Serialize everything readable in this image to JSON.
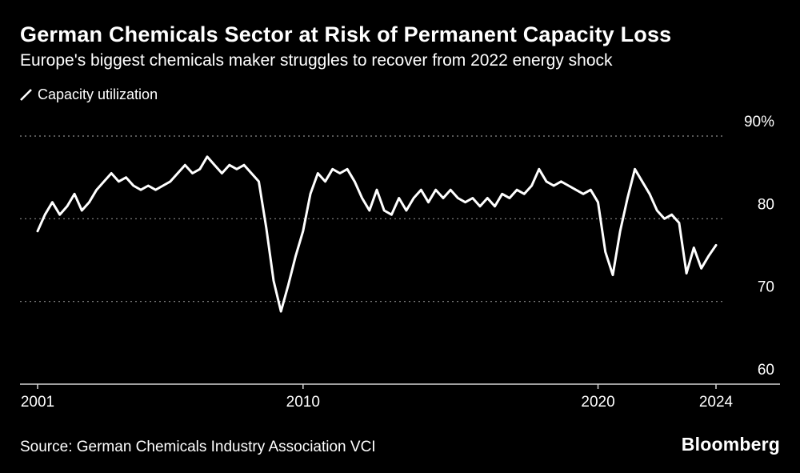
{
  "chart_data": {
    "type": "line",
    "title": "German Chemicals Sector at Risk of Permanent Capacity Loss",
    "subtitle": "Europe's biggest chemicals maker struggles to recover from 2022 energy shock",
    "unit": "%",
    "background_color": "#000000",
    "grid": "horizontal-dotted",
    "legend_position": "top-left",
    "xlim": [
      2001,
      2024
    ],
    "ylim": [
      60,
      90
    ],
    "y_ticks": [
      {
        "value": 90,
        "label": "90%"
      },
      {
        "value": 80,
        "label": "80"
      },
      {
        "value": 70,
        "label": "70"
      },
      {
        "value": 60,
        "label": "60"
      }
    ],
    "x_ticks": [
      {
        "value": 2001,
        "label": "2001"
      },
      {
        "value": 2010,
        "label": "2010"
      },
      {
        "value": 2020,
        "label": "2020"
      },
      {
        "value": 2024,
        "label": "2024"
      }
    ],
    "series": [
      {
        "name": "Capacity utilization",
        "color": "#ffffff",
        "x_start": 2001,
        "x_step": 0.25,
        "values": [
          78.5,
          80.5,
          82,
          80.5,
          81.5,
          83,
          81,
          82,
          83.5,
          84.5,
          85.5,
          84.5,
          85,
          84,
          83.5,
          84,
          83.5,
          84,
          84.5,
          85.5,
          86.5,
          85.5,
          86,
          87.5,
          86.5,
          85.5,
          86.5,
          86,
          86.5,
          85.5,
          84.5,
          79,
          72.5,
          68.8,
          72,
          75.5,
          78.5,
          83,
          85.5,
          84.5,
          86,
          85.5,
          86,
          84.5,
          82.5,
          81,
          83.5,
          81,
          80.5,
          82.5,
          81,
          82.5,
          83.5,
          82,
          83.5,
          82.5,
          83.5,
          82.5,
          82,
          82.5,
          81.5,
          82.5,
          81.5,
          83,
          82.5,
          83.5,
          83,
          84,
          86,
          84.5,
          84,
          84.5,
          84,
          83.5,
          83,
          83.5,
          82,
          76,
          73.2,
          78.5,
          82.5,
          86,
          84.5,
          83,
          81,
          80,
          80.5,
          79.5,
          73.4,
          76.5,
          74,
          75.5,
          76.8
        ]
      }
    ]
  },
  "footer": {
    "source": "Source: German Chemicals Industry Association VCI",
    "brand": "Bloomberg"
  }
}
